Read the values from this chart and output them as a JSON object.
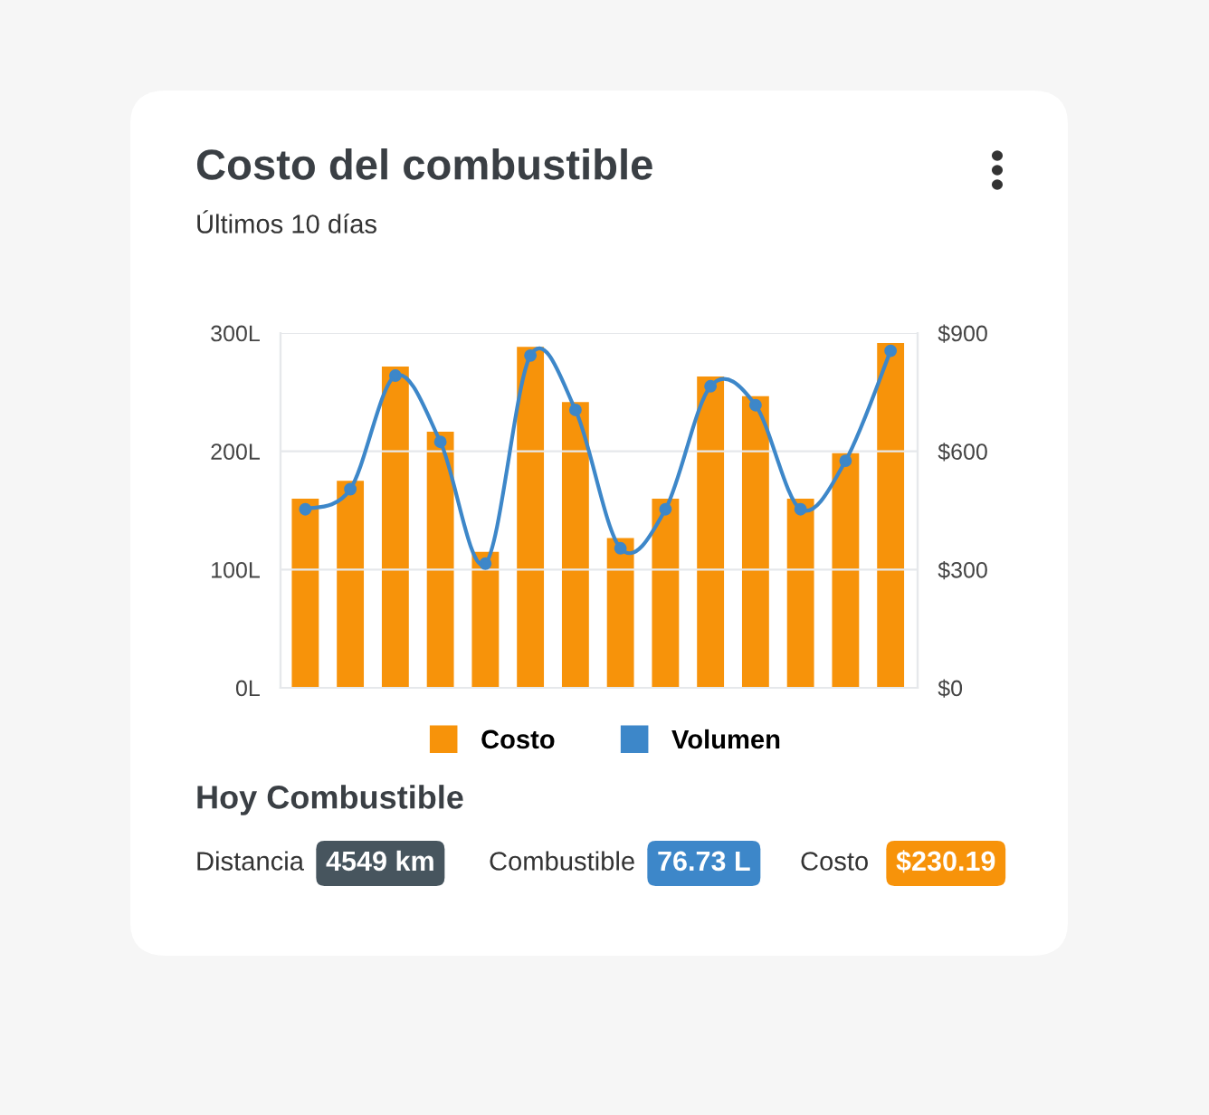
{
  "chart_data": {
    "type": "bar",
    "title": "Costo del combustible",
    "subtitle": "Últimos 10 días",
    "categories": [
      null,
      null,
      null,
      null,
      null,
      null,
      null,
      null,
      null,
      null,
      null,
      null,
      null,
      null
    ],
    "series": [
      {
        "name": "Costo",
        "axis": "y2",
        "color": "#f7930a",
        "values": [
          480,
          525,
          815,
          650,
          345,
          865,
          725,
          380,
          480,
          790,
          740,
          480,
          595,
          875
        ]
      },
      {
        "name": "Volumen",
        "type": "line",
        "color": "#3d87c9",
        "values": [
          151,
          168,
          264,
          208,
          105,
          281,
          235,
          118,
          151,
          255,
          239,
          151,
          192,
          285
        ]
      }
    ],
    "ylim": [
      0,
      300
    ],
    "yticks": [
      {
        "value": 0,
        "label": "0L"
      },
      {
        "value": 100,
        "label": "100L"
      },
      {
        "value": 200,
        "label": "200L"
      },
      {
        "value": 300,
        "label": "300L"
      }
    ],
    "y2lim": [
      0,
      900
    ],
    "y2ticks": [
      {
        "value": 0,
        "label": "$0"
      },
      {
        "value": 300,
        "label": "$300"
      },
      {
        "value": 600,
        "label": "$600"
      },
      {
        "value": 900,
        "label": "$900"
      }
    ],
    "grid": "y",
    "legend": "bottom",
    "marker": "circle",
    "line_style": "solid",
    "annotations": [
      "Hoy Combustible",
      "Distancia",
      "4549 km",
      "Combustible",
      "76.73 L",
      "Costo",
      "$230.19"
    ]
  }
}
